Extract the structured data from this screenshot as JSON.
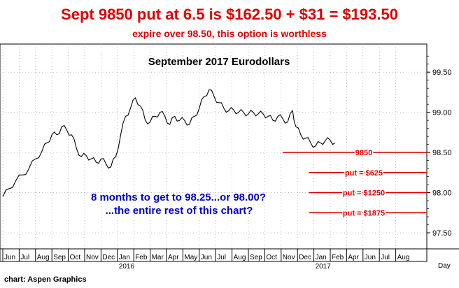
{
  "header": {
    "headline": "Sept 9850 put at 6.5 is $162.50 + $31 = $193.50",
    "subhead": "expire over 98.50, this option is worthless"
  },
  "credit": "chart: Aspen Graphics",
  "chart_data": {
    "type": "line",
    "title": "September 2017 Eurodollars",
    "xlabel": "Day",
    "ylabel": "",
    "x_unit": "month index (0 = Jun 2015)",
    "x_tick_labels": [
      "Jun",
      "Jul",
      "Aug",
      "Sep",
      "Oct",
      "Nov",
      "Dec",
      "Jan",
      "Feb",
      "Mar",
      "Apr",
      "May",
      "Jun",
      "Jul",
      "Aug",
      "Sep",
      "Oct",
      "Nov",
      "Dec",
      "Jan",
      "Feb",
      "Apr",
      "Jun",
      "Jul",
      "Aug"
    ],
    "year_labels": [
      {
        "label": "2016",
        "month": 7
      },
      {
        "label": "2017",
        "month": 19
      }
    ],
    "y_ticks": [
      "97.50",
      "98.00",
      "98.50",
      "99.00",
      "99.50"
    ],
    "ylim": [
      97.3,
      99.85
    ],
    "xlim": [
      0,
      25.5
    ],
    "grid": "dotted",
    "series": [
      {
        "color": "#000000",
        "points": [
          [
            0,
            97.95
          ],
          [
            0.4,
            98.05
          ],
          [
            0.8,
            98.15
          ],
          [
            1.2,
            98.22
          ],
          [
            1.6,
            98.3
          ],
          [
            2.0,
            98.42
          ],
          [
            2.4,
            98.52
          ],
          [
            2.7,
            98.62
          ],
          [
            3.0,
            98.72
          ],
          [
            3.3,
            98.72
          ],
          [
            3.6,
            98.82
          ],
          [
            3.9,
            98.78
          ],
          [
            4.2,
            98.72
          ],
          [
            4.5,
            98.55
          ],
          [
            4.8,
            98.45
          ],
          [
            5.1,
            98.46
          ],
          [
            5.4,
            98.42
          ],
          [
            5.7,
            98.38
          ],
          [
            6.0,
            98.42
          ],
          [
            6.3,
            98.36
          ],
          [
            6.6,
            98.32
          ],
          [
            6.9,
            98.45
          ],
          [
            7.2,
            98.72
          ],
          [
            7.5,
            98.95
          ],
          [
            7.8,
            99.05
          ],
          [
            8.1,
            99.18
          ],
          [
            8.4,
            99.08
          ],
          [
            8.7,
            98.9
          ],
          [
            9.0,
            98.88
          ],
          [
            9.3,
            98.95
          ],
          [
            9.6,
            99.0
          ],
          [
            9.9,
            98.95
          ],
          [
            10.2,
            98.85
          ],
          [
            10.5,
            98.95
          ],
          [
            10.8,
            98.9
          ],
          [
            11.1,
            98.9
          ],
          [
            11.4,
            98.85
          ],
          [
            11.7,
            98.95
          ],
          [
            12.0,
            99.05
          ],
          [
            12.3,
            99.2
          ],
          [
            12.6,
            99.28
          ],
          [
            12.9,
            99.2
          ],
          [
            13.2,
            99.12
          ],
          [
            13.5,
            99.05
          ],
          [
            13.8,
            99.02
          ],
          [
            14.1,
            99.03
          ],
          [
            14.4,
            99.0
          ],
          [
            14.7,
            99.0
          ],
          [
            15.0,
            98.98
          ],
          [
            15.3,
            99.0
          ],
          [
            15.6,
            98.98
          ],
          [
            15.9,
            98.98
          ],
          [
            16.2,
            98.95
          ],
          [
            16.5,
            98.9
          ],
          [
            16.8,
            98.95
          ],
          [
            17.1,
            98.92
          ],
          [
            17.4,
            98.88
          ],
          [
            17.7,
            99.02
          ],
          [
            17.9,
            98.82
          ],
          [
            18.2,
            98.72
          ],
          [
            18.5,
            98.68
          ],
          [
            18.8,
            98.62
          ],
          [
            19.1,
            98.58
          ],
          [
            19.4,
            98.62
          ],
          [
            19.7,
            98.65
          ],
          [
            20.0,
            98.65
          ],
          [
            20.3,
            98.62
          ]
        ]
      }
    ],
    "price_lines": [
      {
        "label": "9850",
        "value": 98.5,
        "color": "#e00000"
      },
      {
        "label": "put = $625",
        "value": 98.25,
        "color": "#e00000"
      },
      {
        "label": "put = $1250",
        "value": 98.0,
        "color": "#e00000"
      },
      {
        "label": "put = $1875",
        "value": 97.75,
        "color": "#e00000"
      }
    ],
    "annotations": [
      {
        "text": "8 months to get to 98.25...or 98.00?",
        "color": "#0000cc"
      },
      {
        "text": "...the entire rest of this chart?",
        "color": "#0000cc"
      }
    ]
  }
}
